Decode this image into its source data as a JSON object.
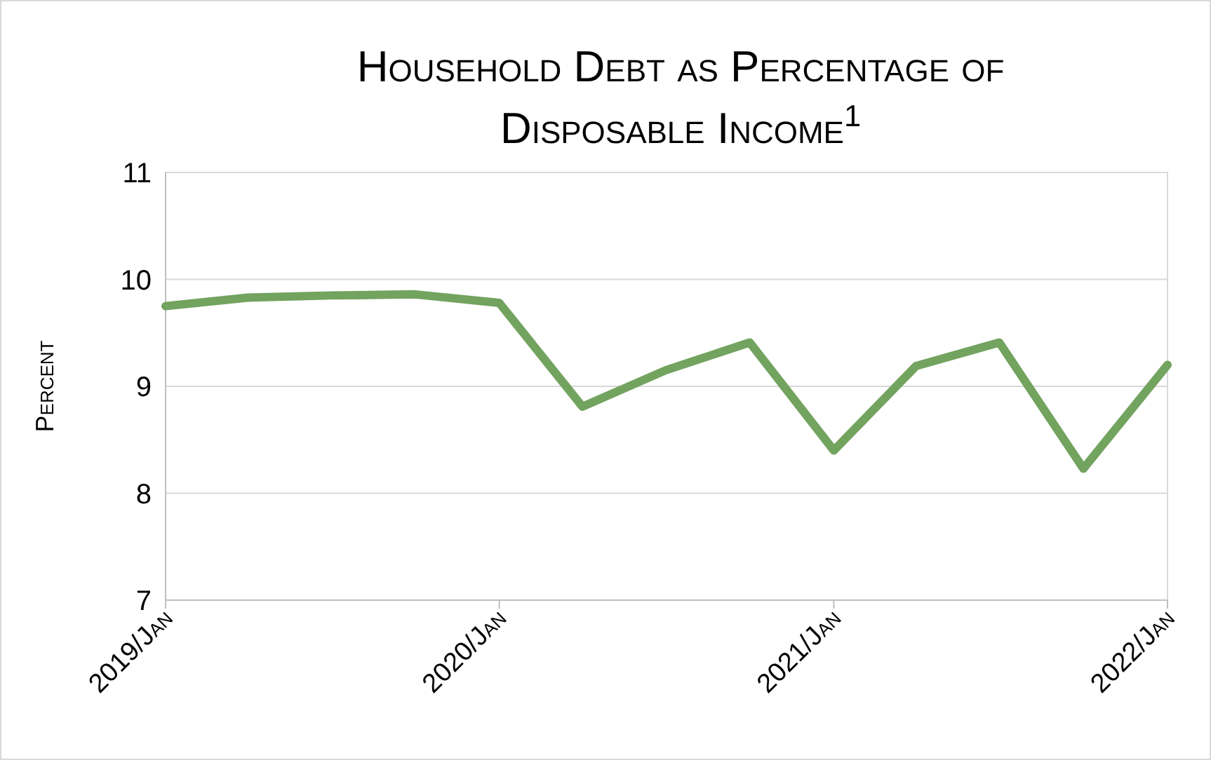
{
  "chart_data": {
    "type": "line",
    "title": "Household Debt as Percentage of Disposable Income$^{1}$",
    "ylabel": "Percent",
    "x": [
      "2019-01",
      "2019-04",
      "2019-07",
      "2019-10",
      "2020-01",
      "2020-04",
      "2020-07",
      "2020-10",
      "2021-01",
      "2021-04",
      "2021-07",
      "2021-10",
      "2022-01"
    ],
    "series": [
      {
        "color": "#72a35f",
        "values": [
          9.75,
          9.83,
          9.85,
          9.86,
          9.78,
          8.81,
          9.15,
          9.41,
          8.4,
          9.19,
          9.41,
          8.23,
          9.2
        ]
      }
    ],
    "xlim": [
      "2019-01",
      "2022-01"
    ],
    "xticks": [
      {
        "value": "2019-01",
        "label": "2019/Jan"
      },
      {
        "value": "2020-01",
        "label": "2020/Jan"
      },
      {
        "value": "2021-01",
        "label": "2021/Jan"
      },
      {
        "value": "2022-01",
        "label": "2022/Jan"
      }
    ],
    "ylim": [
      7,
      11
    ],
    "yticks": [
      7,
      8,
      9,
      10,
      11
    ],
    "grid": "y",
    "marker": "none",
    "line_style": "solid"
  }
}
